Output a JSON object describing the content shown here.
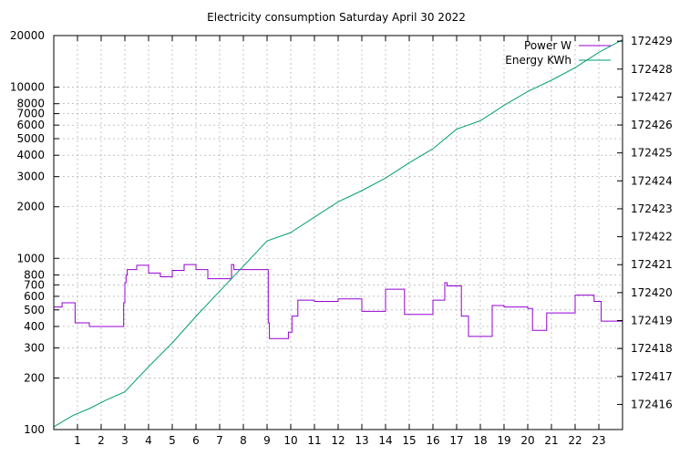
{
  "chart_data": {
    "type": "line",
    "title": "Electricity consumption Saturday April 30 2022",
    "xlabel": "",
    "ylabel": "",
    "y2label": "",
    "grid": true,
    "legend_position": "top-right",
    "xlim": [
      0,
      24
    ],
    "x_ticks": [
      1,
      2,
      3,
      4,
      5,
      6,
      7,
      8,
      9,
      10,
      11,
      12,
      13,
      14,
      15,
      16,
      17,
      18,
      19,
      20,
      21,
      22,
      23
    ],
    "y_scale": "log",
    "ylim": [
      100,
      20000
    ],
    "y_ticks": [
      100,
      200,
      300,
      400,
      500,
      600,
      700,
      800,
      1000,
      2000,
      3000,
      4000,
      5000,
      6000,
      7000,
      8000,
      10000,
      20000
    ],
    "y2_scale": "log",
    "y2lim": [
      172415.1,
      172429.2
    ],
    "y2_ticks": [
      172416,
      172417,
      172418,
      172419,
      172420,
      172421,
      172422,
      172423,
      172424,
      172425,
      172426,
      172427,
      172428,
      172429
    ],
    "series": [
      {
        "name": "Power W",
        "axis": "left",
        "color": "#9400d3",
        "step": true,
        "x": [
          0,
          0.35,
          0.9,
          1.5,
          2.5,
          2.95,
          3.0,
          3.05,
          3.1,
          3.5,
          4.0,
          4.5,
          5.0,
          5.5,
          6.0,
          6.5,
          7.0,
          7.5,
          7.6,
          8.0,
          8.5,
          9.0,
          9.05,
          9.1,
          9.9,
          10.05,
          10.3,
          11.0,
          11.5,
          12.0,
          13.0,
          14.0,
          14.5,
          14.8,
          15.5,
          16.0,
          16.5,
          16.6,
          17.2,
          17.5,
          18.5,
          19.0,
          20.0,
          20.2,
          20.8,
          22.0,
          22.8,
          23.1,
          23.9
        ],
        "y": [
          520,
          550,
          420,
          400,
          400,
          550,
          720,
          800,
          860,
          910,
          820,
          780,
          850,
          920,
          860,
          760,
          760,
          920,
          860,
          860,
          860,
          860,
          420,
          340,
          370,
          460,
          570,
          560,
          560,
          580,
          490,
          660,
          660,
          470,
          470,
          570,
          720,
          690,
          460,
          350,
          530,
          520,
          510,
          380,
          480,
          610,
          560,
          430,
          430
        ]
      },
      {
        "name": "Energy KWh",
        "axis": "right",
        "color": "#009e73",
        "x": [
          0,
          0.8,
          1.5,
          2.2,
          3.0,
          4.0,
          5.0,
          6.0,
          7.0,
          8.0,
          9.0,
          10.0,
          11.0,
          12.0,
          13.0,
          14.0,
          15.0,
          16.0,
          17.0,
          18.0,
          19.0,
          20.0,
          21.0,
          22.0,
          23.0,
          24.0
        ],
        "y": [
          172415.2,
          172415.6,
          172415.85,
          172416.15,
          172416.45,
          172417.35,
          172418.2,
          172419.15,
          172420.05,
          172420.95,
          172421.85,
          172422.15,
          172422.7,
          172423.25,
          172423.65,
          172424.1,
          172424.65,
          172425.15,
          172425.85,
          172426.15,
          172426.7,
          172427.2,
          172427.6,
          172428.05,
          172428.6,
          172429.05
        ]
      }
    ]
  }
}
